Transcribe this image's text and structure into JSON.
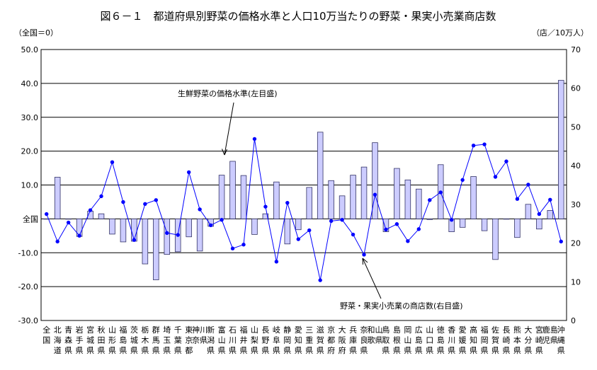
{
  "chart_data": {
    "type": "bar+line",
    "title": "図６－１　都道府県別野菜の価格水準と人口10万当たりの野菜・果実小売業商店数",
    "left_axis_label": "（全国＝0）",
    "right_axis_label": "（店／10万人）",
    "zero_label": "全国",
    "left_ylim": [
      -30,
      50
    ],
    "right_ylim": [
      0,
      70
    ],
    "left_ticks": [
      {
        "value": 50,
        "label": "50.0"
      },
      {
        "value": 40,
        "label": "40.0"
      },
      {
        "value": 30,
        "label": "30.0"
      },
      {
        "value": 20,
        "label": "20.0"
      },
      {
        "value": 10,
        "label": "10.0"
      },
      {
        "value": -10,
        "label": "-10.0"
      },
      {
        "value": -20,
        "label": "-20.0"
      },
      {
        "value": -30,
        "label": "-30.0"
      }
    ],
    "right_ticks": [
      {
        "value": 70,
        "label": "70"
      },
      {
        "value": 60,
        "label": "60"
      },
      {
        "value": 50,
        "label": "50"
      },
      {
        "value": 40,
        "label": "40"
      },
      {
        "value": 30,
        "label": "30"
      },
      {
        "value": 20,
        "label": "20"
      },
      {
        "value": 10,
        "label": "10"
      },
      {
        "value": 0,
        "label": "0"
      }
    ],
    "categories": [
      "全国",
      "北海道",
      "青森県",
      "岩手県",
      "宮城県",
      "秋田県",
      "山形県",
      "福島県",
      "茨城県",
      "栃木県",
      "群馬県",
      "埼玉県",
      "千葉県",
      "東京都",
      "神奈川県",
      "新潟県",
      "富山県",
      "石川県",
      "福井県",
      "山梨県",
      "長野県",
      "岐阜県",
      "静岡県",
      "愛知県",
      "三重県",
      "滋賀県",
      "京都府",
      "大阪府",
      "兵庫県",
      "奈良県",
      "和歌山県",
      "鳥取県",
      "島根県",
      "岡山県",
      "広島県",
      "山口県",
      "徳島県",
      "香川県",
      "愛媛県",
      "高知県",
      "福岡県",
      "佐賀県",
      "長崎県",
      "熊本県",
      "大分県",
      "宮崎県",
      "鹿児島県",
      "沖縄県"
    ],
    "category_labels": [
      "全国",
      "北海道",
      "青森県",
      "岩手県",
      "宮城県",
      "秋田県",
      "山形県",
      "福島県",
      "茨城県",
      "栃木県",
      "群馬県",
      "埼玉県",
      "千葉県",
      "東京都",
      "神奈川県",
      "新潟県",
      "富山県",
      "石川県",
      "福井県",
      "山梨県",
      "長野県",
      "岐阜県",
      "静岡県",
      "愛知県",
      "三重県",
      "滋賀県",
      "京都府",
      "大阪府",
      "兵庫県",
      "奈良県",
      "和歌山県",
      "鳥取県",
      "島根県",
      "岡山県",
      "広島県",
      "山口県",
      "徳島県",
      "香川県",
      "愛媛県",
      "高知県",
      "福岡県",
      "佐賀県",
      "長崎県",
      "熊本県",
      "大分県",
      "宮崎県",
      "鹿児島県",
      "沖縄県"
    ],
    "series": [
      {
        "name": "生鮮野菜の価格水準",
        "axis": "left",
        "kind": "bar",
        "values": [
          0,
          12.3,
          0,
          -5.2,
          2.3,
          1.5,
          -4.5,
          -6.8,
          -6.6,
          -13.3,
          -18,
          -10.5,
          -9.7,
          -5.3,
          -9.5,
          -2.2,
          12.9,
          17,
          12.8,
          -4.6,
          1.5,
          10.9,
          -7.4,
          -3.2,
          9.3,
          25.6,
          11.3,
          6.8,
          12.9,
          15.3,
          22.5,
          -3.8,
          14.9,
          11.5,
          8.8,
          -0.2,
          16,
          -3.8,
          -2.5,
          12.5,
          -3.5,
          -12,
          0,
          -5.5,
          4.3,
          -3,
          2.5,
          40.9
        ]
      },
      {
        "name": "野菜・果実小売業の商店数",
        "axis": "right",
        "kind": "line",
        "values": [
          27.5,
          20.4,
          25.3,
          21.9,
          28.5,
          32.1,
          40.9,
          30.6,
          20.8,
          30.1,
          31.1,
          22.6,
          22.1,
          38.3,
          28.7,
          24.6,
          26.0,
          18.6,
          19.6,
          46.9,
          29.4,
          15.2,
          30.4,
          21.0,
          23.3,
          10.4,
          25.7,
          26.0,
          22.2,
          17.0,
          32.5,
          23.5,
          24.9,
          20.5,
          23.6,
          31.1,
          33.1,
          26.0,
          36.3,
          45.2,
          45.5,
          37.1,
          41.1,
          31.4,
          35.1,
          27.5,
          31.2,
          20.4
        ]
      }
    ],
    "annotations": [
      {
        "text": "生鮮野菜の価格水準(左目盛)",
        "target_series": "生鮮野菜の価格水準"
      },
      {
        "text": "野菜・果実小売業の商店数(右目盛)",
        "target_series": "野菜・果実小売業の商店数"
      }
    ],
    "colors": {
      "bar_fill": "#ccccff",
      "bar_stroke": "#333366",
      "line": "#0000ff",
      "grid": "#000000"
    }
  }
}
